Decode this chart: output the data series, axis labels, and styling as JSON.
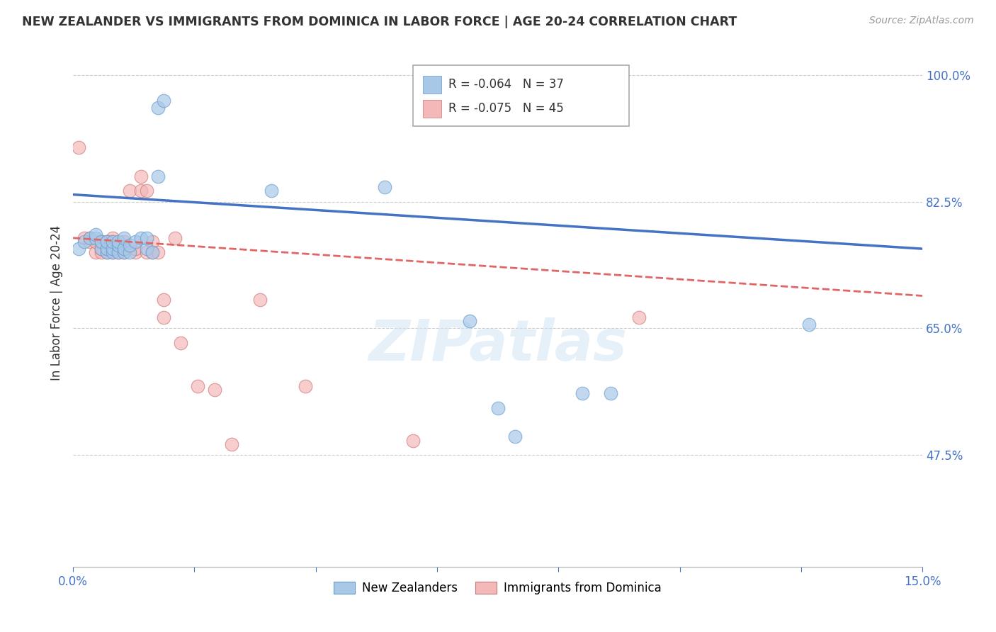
{
  "title": "NEW ZEALANDER VS IMMIGRANTS FROM DOMINICA IN LABOR FORCE | AGE 20-24 CORRELATION CHART",
  "source": "Source: ZipAtlas.com",
  "ylabel": "In Labor Force | Age 20-24",
  "xlim": [
    0.0,
    0.15
  ],
  "ylim": [
    0.32,
    1.05
  ],
  "xticks": [
    0.0,
    0.021428,
    0.042857,
    0.064286,
    0.085714,
    0.107143,
    0.128571,
    0.15
  ],
  "xticklabels": [
    "0.0%",
    "",
    "",
    "",
    "",
    "",
    "",
    "15.0%"
  ],
  "yticks": [
    0.475,
    0.65,
    0.825,
    1.0
  ],
  "yticklabels": [
    "47.5%",
    "65.0%",
    "82.5%",
    "100.0%"
  ],
  "blue_R": "-0.064",
  "blue_N": "37",
  "pink_R": "-0.075",
  "pink_N": "45",
  "blue_color": "#a8c8e8",
  "pink_color": "#f4b8b8",
  "blue_edge_color": "#6699cc",
  "pink_edge_color": "#cc7777",
  "blue_line_color": "#4472c4",
  "pink_line_color": "#e06666",
  "watermark": "ZIPatlas",
  "blue_scatter_x": [
    0.001,
    0.002,
    0.003,
    0.004,
    0.004,
    0.005,
    0.005,
    0.006,
    0.006,
    0.006,
    0.007,
    0.007,
    0.007,
    0.008,
    0.008,
    0.008,
    0.009,
    0.009,
    0.009,
    0.01,
    0.01,
    0.011,
    0.012,
    0.013,
    0.013,
    0.014,
    0.015,
    0.015,
    0.016,
    0.035,
    0.055,
    0.07,
    0.075,
    0.078,
    0.09,
    0.095,
    0.13
  ],
  "blue_scatter_y": [
    0.76,
    0.77,
    0.775,
    0.775,
    0.78,
    0.76,
    0.77,
    0.755,
    0.76,
    0.77,
    0.755,
    0.76,
    0.77,
    0.755,
    0.765,
    0.77,
    0.755,
    0.76,
    0.775,
    0.755,
    0.765,
    0.77,
    0.775,
    0.76,
    0.775,
    0.755,
    0.86,
    0.955,
    0.965,
    0.84,
    0.845,
    0.66,
    0.54,
    0.5,
    0.56,
    0.56,
    0.655
  ],
  "pink_scatter_x": [
    0.001,
    0.002,
    0.003,
    0.003,
    0.004,
    0.004,
    0.005,
    0.005,
    0.005,
    0.006,
    0.006,
    0.006,
    0.006,
    0.007,
    0.007,
    0.007,
    0.007,
    0.007,
    0.008,
    0.008,
    0.008,
    0.009,
    0.009,
    0.009,
    0.01,
    0.011,
    0.011,
    0.012,
    0.012,
    0.013,
    0.013,
    0.014,
    0.014,
    0.015,
    0.016,
    0.016,
    0.018,
    0.019,
    0.022,
    0.025,
    0.028,
    0.033,
    0.041,
    0.06,
    0.1
  ],
  "pink_scatter_y": [
    0.9,
    0.775,
    0.77,
    0.775,
    0.755,
    0.77,
    0.755,
    0.76,
    0.77,
    0.755,
    0.76,
    0.765,
    0.77,
    0.755,
    0.76,
    0.765,
    0.77,
    0.775,
    0.755,
    0.76,
    0.765,
    0.755,
    0.76,
    0.77,
    0.84,
    0.755,
    0.76,
    0.84,
    0.86,
    0.755,
    0.84,
    0.755,
    0.77,
    0.755,
    0.665,
    0.69,
    0.775,
    0.63,
    0.57,
    0.565,
    0.49,
    0.69,
    0.57,
    0.495,
    0.665
  ],
  "blue_trend_x0": 0.0,
  "blue_trend_x1": 0.15,
  "blue_trend_y0": 0.835,
  "blue_trend_y1": 0.76,
  "pink_trend_x0": 0.0,
  "pink_trend_x1": 0.15,
  "pink_trend_y0": 0.775,
  "pink_trend_y1": 0.695,
  "legend_blue_label": "R = -0.064   N = 37",
  "legend_pink_label": "R = -0.075   N = 45"
}
